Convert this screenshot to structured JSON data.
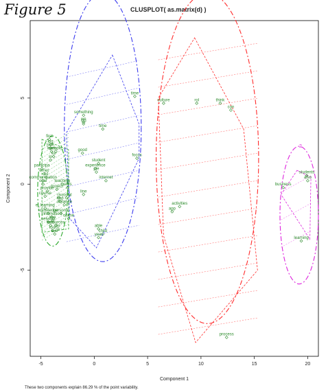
{
  "figure_label": "Figure 5",
  "chart_data": {
    "type": "scatter",
    "title": "CLUSPLOT( as.matrix(d) )",
    "xlabel": "Component 1",
    "ylabel": "Component 2",
    "footnote": "These two components explain 86.29 % of the point variability.",
    "xlim": [
      -6,
      21
    ],
    "ylim": [
      -10,
      9.5
    ],
    "x_ticks": [
      -5,
      0,
      5,
      10,
      15,
      20
    ],
    "y_ticks": [
      -5,
      0,
      5
    ],
    "colors": {
      "points": "#2a8a2a",
      "cluster_1": "#3a3aee",
      "cluster_2": "#dd22dd",
      "cluster_3": "#ff2a2a",
      "cluster_4": "#2aa82a",
      "frame": "#000000"
    },
    "clusters": [
      {
        "id": "1",
        "color": "cluster_1",
        "center": [
          0.8,
          3.3
        ],
        "rx": 3.6,
        "ry": 7.8,
        "label": "1",
        "hull": [
          [
            1.7,
            7.5
          ],
          [
            4.2,
            3.5
          ],
          [
            4.2,
            1.5
          ],
          [
            0.2,
            -3.7
          ],
          [
            -2.3,
            -2.0
          ],
          [
            -2.6,
            3.0
          ]
        ]
      },
      {
        "id": "4",
        "color": "cluster_3",
        "center": [
          10.6,
          1.5
        ],
        "rx": 4.8,
        "ry": 9.6,
        "label": "4",
        "hull": [
          [
            9.4,
            8.5
          ],
          [
            14.0,
            3.2
          ],
          [
            15.3,
            -5.0
          ],
          [
            9.5,
            -9.2
          ],
          [
            6.5,
            -3.0
          ],
          [
            6.0,
            5.0
          ]
        ]
      },
      {
        "id": "2",
        "color": "cluster_2",
        "center": [
          19.2,
          -1.8
        ],
        "rx": 1.8,
        "ry": 4.0,
        "label": "2",
        "hull": [
          [
            19.0,
            0.8
          ],
          [
            20.3,
            0.4
          ],
          [
            20.2,
            -3.2
          ],
          [
            17.5,
            -0.6
          ]
        ]
      },
      {
        "id": "3",
        "color": "cluster_4",
        "center": [
          -3.9,
          -0.4
        ],
        "rx": 1.4,
        "ry": 3.2,
        "label": "",
        "hull": [
          [
            -4.9,
            2.6
          ],
          [
            -2.4,
            2.0
          ],
          [
            -2.4,
            -2.6
          ],
          [
            -4.9,
            -2.8
          ]
        ]
      }
    ],
    "points": [
      {
        "x": 3.8,
        "y": 5.1,
        "label": "time"
      },
      {
        "x": 6.5,
        "y": 4.7,
        "label": "culture"
      },
      {
        "x": 9.6,
        "y": 4.7,
        "label": "rol"
      },
      {
        "x": 11.8,
        "y": 4.7,
        "label": "think"
      },
      {
        "x": 12.8,
        "y": 4.3,
        "label": "con"
      },
      {
        "x": -1.0,
        "y": 4.0,
        "label": "something"
      },
      {
        "x": -1.0,
        "y": 3.6,
        "label": "we"
      },
      {
        "x": -1.0,
        "y": 3.5,
        "label": "stu"
      },
      {
        "x": 0.8,
        "y": 3.2,
        "label": "time"
      },
      {
        "x": -4.2,
        "y": 2.6,
        "label": "first"
      },
      {
        "x": -4.1,
        "y": 2.3,
        "label": "ing"
      },
      {
        "x": -4.1,
        "y": 2.1,
        "label": "look"
      },
      {
        "x": -4.0,
        "y": 1.9,
        "label": "learn"
      },
      {
        "x": -3.6,
        "y": 1.9,
        "label": "people"
      },
      {
        "x": -3.8,
        "y": 1.6,
        "label": "ex"
      },
      {
        "x": -4.1,
        "y": 1.4,
        "label": "lo"
      },
      {
        "x": -1.1,
        "y": 1.8,
        "label": "good"
      },
      {
        "x": 0.4,
        "y": 1.2,
        "label": "student"
      },
      {
        "x": 0.1,
        "y": 0.9,
        "label": "experience"
      },
      {
        "x": 0.2,
        "y": 0.7,
        "label": "ple"
      },
      {
        "x": 4.0,
        "y": 1.5,
        "label": "focus"
      },
      {
        "x": 1.1,
        "y": 0.2,
        "label": "internet"
      },
      {
        "x": -4.9,
        "y": 0.9,
        "label": "participa"
      },
      {
        "x": -4.7,
        "y": 0.6,
        "label": "ernet"
      },
      {
        "x": -4.5,
        "y": 0.4,
        "label": "cd"
      },
      {
        "x": -4.8,
        "y": 0.2,
        "label": "communication"
      },
      {
        "x": -4.8,
        "y": 0.0,
        "label": "onal"
      },
      {
        "x": -3.0,
        "y": 0.0,
        "label": "teaching"
      },
      {
        "x": -2.5,
        "y": -0.2,
        "label": "sites"
      },
      {
        "x": -3.5,
        "y": -0.3,
        "label": "project"
      },
      {
        "x": -4.4,
        "y": -0.4,
        "label": "provide"
      },
      {
        "x": -4.6,
        "y": -0.7,
        "label": "course"
      },
      {
        "x": -3.3,
        "y": -0.8,
        "label": "ra"
      },
      {
        "x": -2.6,
        "y": -0.8,
        "label": "social"
      },
      {
        "x": -3.2,
        "y": -1.0,
        "label": "find"
      },
      {
        "x": -2.8,
        "y": -1.2,
        "label": "distance"
      },
      {
        "x": -1.0,
        "y": -0.6,
        "label": "line"
      },
      {
        "x": -4.6,
        "y": -1.4,
        "label": "e_learning"
      },
      {
        "x": -4.3,
        "y": -1.7,
        "label": "knowledge"
      },
      {
        "x": -4.0,
        "y": -1.9,
        "label": "information"
      },
      {
        "x": -3.9,
        "y": -2.1,
        "label": "use"
      },
      {
        "x": -3.1,
        "y": -1.7,
        "label": "personal"
      },
      {
        "x": -4.3,
        "y": -2.2,
        "label": "network"
      },
      {
        "x": -4.1,
        "y": -2.4,
        "label": "web"
      },
      {
        "x": -3.6,
        "y": -2.4,
        "label": "resources"
      },
      {
        "x": -3.4,
        "y": -2.6,
        "label": "tio"
      },
      {
        "x": -2.4,
        "y": -2.0,
        "label": "online"
      },
      {
        "x": -3.9,
        "y": -2.7,
        "label": "tool"
      },
      {
        "x": -3.7,
        "y": -2.9,
        "label": "lear"
      },
      {
        "x": 8.0,
        "y": -1.3,
        "label": "activities"
      },
      {
        "x": 7.3,
        "y": -1.6,
        "label": "app"
      },
      {
        "x": 0.4,
        "y": -2.6,
        "label": "able"
      },
      {
        "x": 0.8,
        "y": -2.9,
        "label": "child"
      },
      {
        "x": 0.4,
        "y": -3.1,
        "label": "year"
      },
      {
        "x": 19.9,
        "y": 0.5,
        "label": "students"
      },
      {
        "x": 20.0,
        "y": 0.2,
        "label": "also"
      },
      {
        "x": 17.7,
        "y": -0.2,
        "label": "business"
      },
      {
        "x": 19.4,
        "y": -3.3,
        "label": "learning"
      },
      {
        "x": 12.4,
        "y": -8.9,
        "label": "process"
      }
    ]
  }
}
